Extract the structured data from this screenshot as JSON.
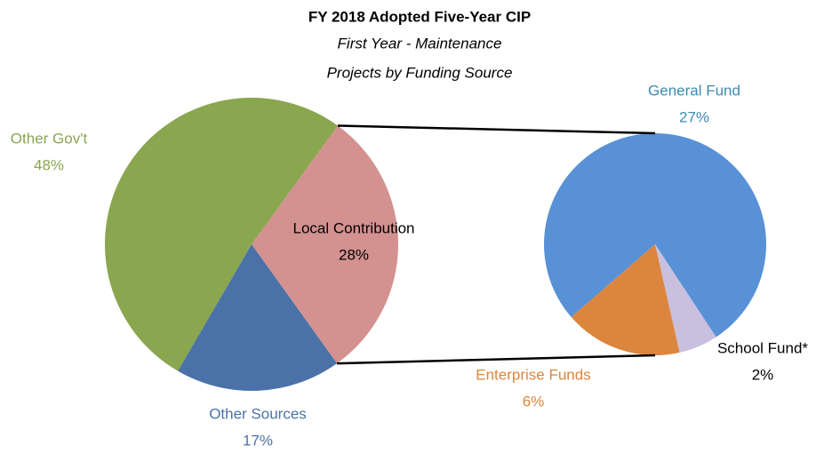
{
  "chart_data": [
    {
      "type": "pie",
      "title": "FY 2018 Adopted Five-Year CIP",
      "subtitle": [
        "First Year - Maintenance",
        "Projects by Funding Source"
      ],
      "categories": [
        "Local Contribution",
        "Other Sources",
        "Other Gov't"
      ],
      "values": [
        28,
        17,
        48
      ],
      "value_labels": [
        "28%",
        "17%",
        "48%"
      ],
      "colors": [
        "#d39190",
        "#4a72a8",
        "#8aa64f"
      ]
    },
    {
      "type": "pie",
      "categories": [
        "General Fund",
        "School Fund*",
        "Enterprise Funds"
      ],
      "values": [
        27,
        2,
        6
      ],
      "value_labels": [
        "27%",
        "2%",
        "6%"
      ],
      "colors": [
        "#5891d6",
        "#c8c0de",
        "#dc853e"
      ]
    }
  ]
}
